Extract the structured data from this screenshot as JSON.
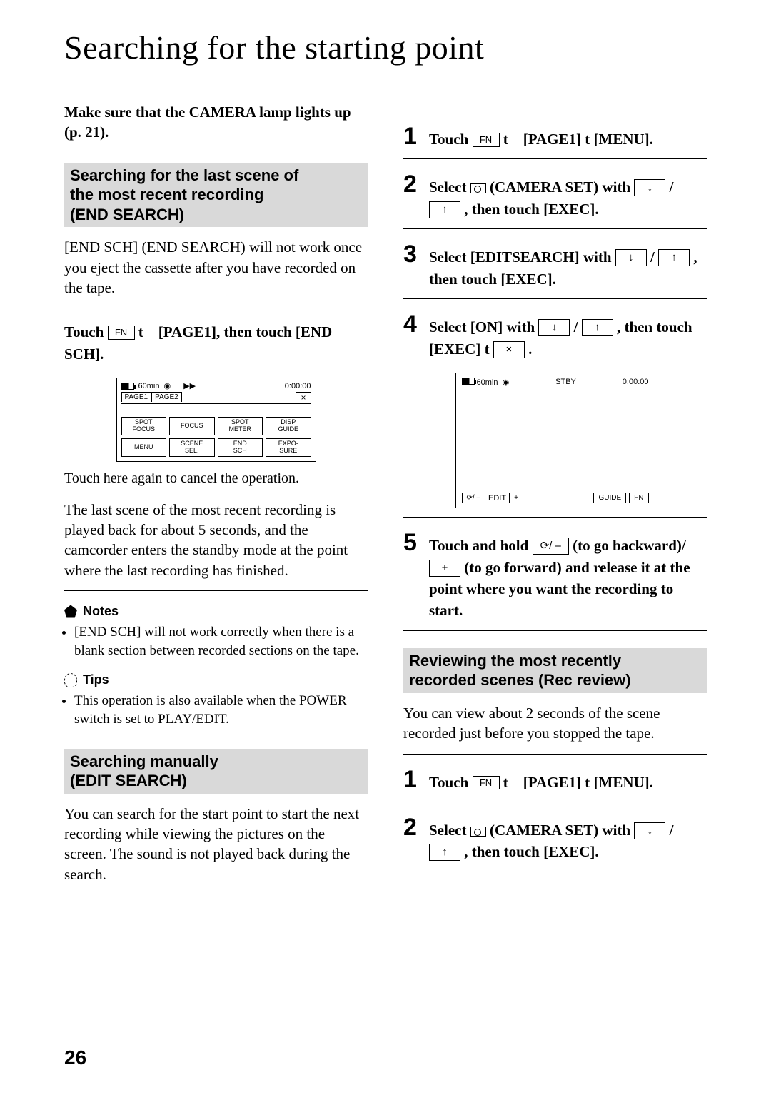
{
  "page": {
    "title": "Searching for the starting point",
    "number": "26"
  },
  "left": {
    "intro": "Make sure that the CAMERA lamp lights up (p. 21).",
    "sec1": {
      "l1": "Searching for the last scene of",
      "l2": "the most recent recording",
      "l3": "(END SEARCH)"
    },
    "body1": "[END SCH] (END SEARCH) will not work once you eject the cassette after you have recorded on the tape.",
    "touch_line_a": "Touch ",
    "touch_line_b": " t",
    "touch_line_c": "[PAGE1], then touch [END SCH].",
    "fn_label": "FN",
    "lcd1": {
      "time_remaining": "60min",
      "timecode": "0:00:00",
      "page1": "PAGE1",
      "page2": "PAGE2",
      "close": "×",
      "btns": {
        "b1": "SPOT\nFOCUS",
        "b2": "FOCUS",
        "b3": "SPOT\nMETER",
        "b4": "DISP\nGUIDE",
        "b5": "MENU",
        "b6": "SCENE\nSEL.",
        "b7": "END\nSCH",
        "b8": "EXPO-\nSURE"
      }
    },
    "caption1": "Touch here again to cancel the operation.",
    "body2": "The last scene of the most recent recording is played back for about 5 seconds, and the camcorder enters the standby mode at the point where the last recording has finished.",
    "notes_label": "Notes",
    "note1": "[END SCH] will not work correctly when there is a blank section between recorded sections on the tape.",
    "tips_label": "Tips",
    "tip1": "This operation is also available when the POWER switch is set to PLAY/EDIT.",
    "sec2": {
      "l1": "Searching manually",
      "l2": "(EDIT SEARCH)"
    },
    "body3": "You can search for the start point to start the next recording while viewing the pictures on the screen. The sound is not played back during the search."
  },
  "right": {
    "fn_label": "FN",
    "step1_a": "Touch ",
    "step1_b": " t",
    "step1_c": "[PAGE1] t [MENU].",
    "step2_a": "Select ",
    "step2_b": " (CAMERA SET) with ",
    "step2_c": " / ",
    "step2_d": " , then touch [EXEC].",
    "step3_a": "Select [EDITSEARCH] with ",
    "step3_b": " / ",
    "step3_c": " , then touch [EXEC].",
    "step4_a": "Select [ON] with ",
    "step4_b": " / ",
    "step4_c": " , then touch [EXEC] t ",
    "step4_d": " .",
    "down": "↓",
    "up": "↑",
    "x": "×",
    "lcd2": {
      "time_remaining": "60min",
      "stby": "STBY",
      "timecode": "0:00:00",
      "rev": "/ –",
      "edit": "EDIT",
      "plus": "+",
      "guide": "GUIDE",
      "fn": "FN"
    },
    "step5_a": "Touch and hold ",
    "step5_b": " (to go backward)/",
    "step5_c": " (to go forward) and release it at the point where you want the recording to start.",
    "rev_label": "/ –",
    "plus_label": "+",
    "sec3": {
      "l1": "Reviewing the most recently",
      "l2": "recorded scenes (Rec review)"
    },
    "body4": "You can view about 2 seconds of the scene recorded just before you stopped the tape.",
    "step6_a": "Touch ",
    "step6_b": " t",
    "step6_c": "[PAGE1] t [MENU].",
    "step7_a": "Select ",
    "step7_b": " (CAMERA SET) with ",
    "step7_c": " / ",
    "step7_d": " , then touch [EXEC]."
  }
}
